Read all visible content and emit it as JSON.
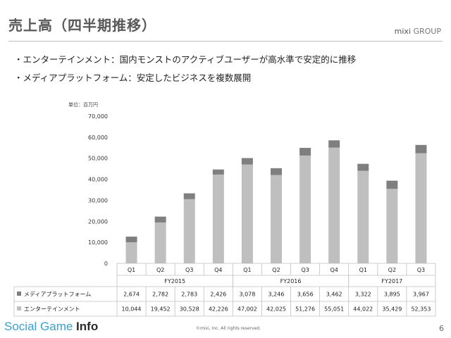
{
  "slide": {
    "title": "売上高（四半期推移）",
    "logo_main": "mixi",
    "logo_group": "GROUP",
    "bullets": [
      "・エンターテインメント：国内モンストのアクティブユーザーが高水準で安定的に推移",
      "・メディアプラットフォーム：安定したビジネスを複数展開"
    ],
    "unit_label": "単位：百万円",
    "brand_a": "Social Game ",
    "brand_b": "Info",
    "copyright": "©mixi, Inc. All rights reserved.",
    "page_number": "6"
  },
  "chart_data": {
    "type": "bar",
    "stacked": true,
    "categories": [
      "Q1",
      "Q2",
      "Q3",
      "Q4",
      "Q1",
      "Q2",
      "Q3",
      "Q4",
      "Q1",
      "Q2",
      "Q3"
    ],
    "groups": [
      {
        "label": "FY2015",
        "count": 4
      },
      {
        "label": "FY2016",
        "count": 4
      },
      {
        "label": "FY2017",
        "count": 3
      }
    ],
    "series": [
      {
        "name": "エンターテインメント",
        "color": "#bfbfbf",
        "values": [
          10044,
          19452,
          30528,
          42226,
          47002,
          42025,
          51276,
          55051,
          44022,
          35429,
          52353
        ],
        "labels": [
          "10,044",
          "19,452",
          "30,528",
          "42,226",
          "47,002",
          "42,025",
          "51,276",
          "55,051",
          "44,022",
          "35,429",
          "52,353"
        ]
      },
      {
        "name": "メディアプラットフォーム",
        "color": "#7f7f7f",
        "values": [
          2674,
          2782,
          2783,
          2426,
          3078,
          3246,
          3656,
          3462,
          3322,
          3895,
          3967
        ],
        "labels": [
          "2,674",
          "2,782",
          "2,783",
          "2,426",
          "3,078",
          "3,246",
          "3,656",
          "3,462",
          "3,322",
          "3,895",
          "3,967"
        ]
      }
    ],
    "yticks": [
      "0",
      "10,000",
      "20,000",
      "30,000",
      "40,000",
      "50,000",
      "60,000",
      "70,000"
    ],
    "ylim": [
      0,
      70000
    ],
    "legend": "data-table"
  }
}
